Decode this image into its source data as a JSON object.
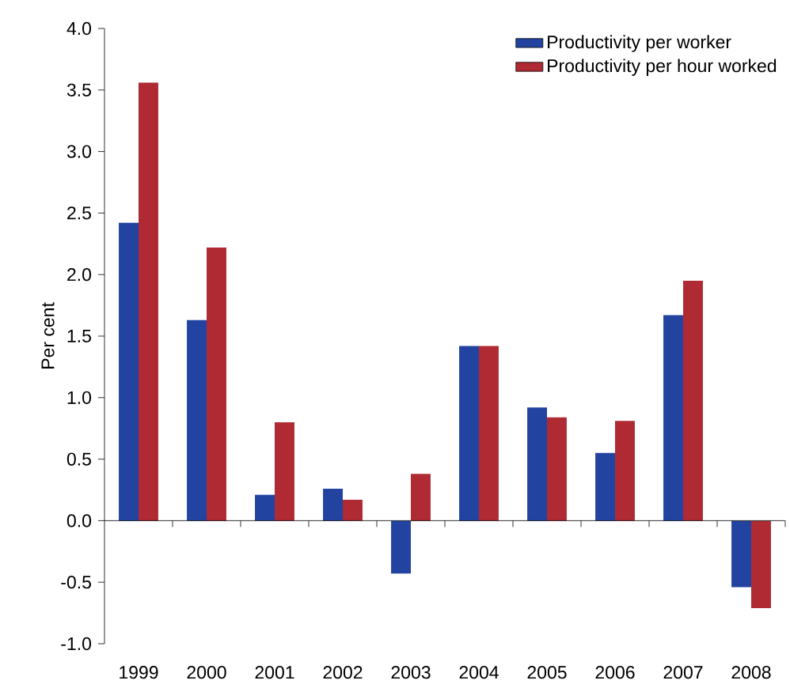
{
  "chart_data": {
    "type": "bar",
    "ylabel": "Per cent",
    "categories": [
      "1999",
      "2000",
      "2001",
      "2002",
      "2003",
      "2004",
      "2005",
      "2006",
      "2007",
      "2008"
    ],
    "series": [
      {
        "name": "Productivity per worker",
        "color": "#2244a0",
        "values": [
          2.42,
          1.63,
          0.21,
          0.26,
          -0.43,
          1.42,
          0.92,
          0.55,
          1.67,
          -0.54
        ]
      },
      {
        "name": "Productivity per hour worked",
        "color": "#b02a33",
        "values": [
          3.56,
          2.22,
          0.8,
          0.17,
          0.38,
          1.42,
          0.84,
          0.81,
          1.95,
          -0.71
        ]
      }
    ],
    "ylim": [
      -1,
      4
    ],
    "yticks": [
      {
        "value": -1,
        "label": "-1.0"
      },
      {
        "value": -0.5,
        "label": "-0.5"
      },
      {
        "value": 0,
        "label": "0.0"
      },
      {
        "value": 0.5,
        "label": "0.5"
      },
      {
        "value": 1,
        "label": "1.0"
      },
      {
        "value": 1.5,
        "label": "1.5"
      },
      {
        "value": 2,
        "label": "2.0"
      },
      {
        "value": 2.5,
        "label": "2.5"
      },
      {
        "value": 3,
        "label": "3.0"
      },
      {
        "value": 3.5,
        "label": "3.5"
      },
      {
        "value": 4,
        "label": "4.0"
      }
    ],
    "legend": "top right"
  }
}
